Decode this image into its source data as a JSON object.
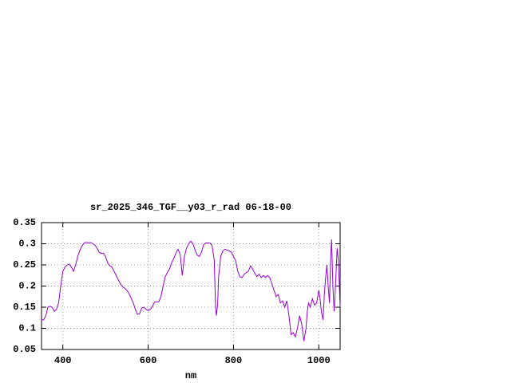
{
  "chart_data": {
    "type": "line",
    "title": "sr_2025_346_TGF__y03_r_rad 06-18-00",
    "x_label": "nm",
    "x": [
      350,
      355,
      360,
      365,
      370,
      375,
      380,
      385,
      390,
      395,
      400,
      405,
      410,
      415,
      420,
      425,
      430,
      435,
      440,
      445,
      450,
      455,
      460,
      465,
      470,
      475,
      480,
      485,
      490,
      495,
      500,
      505,
      510,
      515,
      520,
      525,
      530,
      535,
      540,
      545,
      550,
      555,
      560,
      565,
      570,
      575,
      580,
      585,
      590,
      595,
      600,
      605,
      610,
      615,
      620,
      625,
      630,
      635,
      640,
      645,
      650,
      655,
      660,
      665,
      670,
      675,
      680,
      685,
      690,
      695,
      700,
      705,
      710,
      715,
      720,
      725,
      730,
      735,
      740,
      745,
      750,
      755,
      758,
      760,
      763,
      765,
      770,
      775,
      780,
      785,
      790,
      795,
      800,
      805,
      810,
      815,
      820,
      825,
      830,
      835,
      840,
      845,
      850,
      855,
      860,
      865,
      870,
      875,
      880,
      885,
      890,
      895,
      900,
      905,
      910,
      915,
      920,
      925,
      930,
      935,
      940,
      945,
      950,
      955,
      960,
      965,
      970,
      973,
      976,
      980,
      985,
      990,
      995,
      1000,
      1003,
      1006,
      1010,
      1013,
      1016,
      1019,
      1022,
      1025,
      1028,
      1030,
      1033,
      1036,
      1040,
      1043,
      1046,
      1050
    ],
    "series": [
      {
        "color": "#9400d3",
        "values": [
          0.12,
          0.12,
          0.13,
          0.15,
          0.152,
          0.15,
          0.14,
          0.145,
          0.16,
          0.2,
          0.235,
          0.245,
          0.25,
          0.252,
          0.245,
          0.235,
          0.25,
          0.27,
          0.285,
          0.295,
          0.302,
          0.303,
          0.302,
          0.303,
          0.3,
          0.297,
          0.29,
          0.28,
          0.277,
          0.278,
          0.27,
          0.255,
          0.248,
          0.245,
          0.235,
          0.225,
          0.215,
          0.205,
          0.198,
          0.195,
          0.19,
          0.182,
          0.172,
          0.16,
          0.145,
          0.133,
          0.135,
          0.148,
          0.15,
          0.145,
          0.142,
          0.145,
          0.152,
          0.162,
          0.163,
          0.163,
          0.175,
          0.2,
          0.222,
          0.232,
          0.24,
          0.255,
          0.265,
          0.278,
          0.287,
          0.275,
          0.225,
          0.27,
          0.29,
          0.3,
          0.306,
          0.3,
          0.285,
          0.273,
          0.27,
          0.28,
          0.298,
          0.302,
          0.302,
          0.302,
          0.295,
          0.26,
          0.15,
          0.13,
          0.16,
          0.22,
          0.27,
          0.283,
          0.287,
          0.285,
          0.283,
          0.28,
          0.27,
          0.26,
          0.235,
          0.222,
          0.22,
          0.228,
          0.232,
          0.235,
          0.248,
          0.24,
          0.23,
          0.222,
          0.228,
          0.22,
          0.225,
          0.22,
          0.225,
          0.22,
          0.205,
          0.19,
          0.175,
          0.18,
          0.16,
          0.165,
          0.15,
          0.165,
          0.13,
          0.085,
          0.09,
          0.08,
          0.1,
          0.13,
          0.11,
          0.07,
          0.1,
          0.14,
          0.16,
          0.15,
          0.17,
          0.155,
          0.16,
          0.19,
          0.17,
          0.14,
          0.12,
          0.18,
          0.22,
          0.25,
          0.2,
          0.16,
          0.27,
          0.31,
          0.2,
          0.14,
          0.22,
          0.29,
          0.26,
          0.15
        ]
      }
    ],
    "xlim": [
      350,
      1050
    ],
    "xticks": [
      400,
      600,
      800,
      1000
    ],
    "ylim": [
      0.05,
      0.35
    ],
    "yticks": [
      0.05,
      0.1,
      0.15,
      0.2,
      0.25,
      0.3,
      0.35
    ],
    "grid": true
  }
}
